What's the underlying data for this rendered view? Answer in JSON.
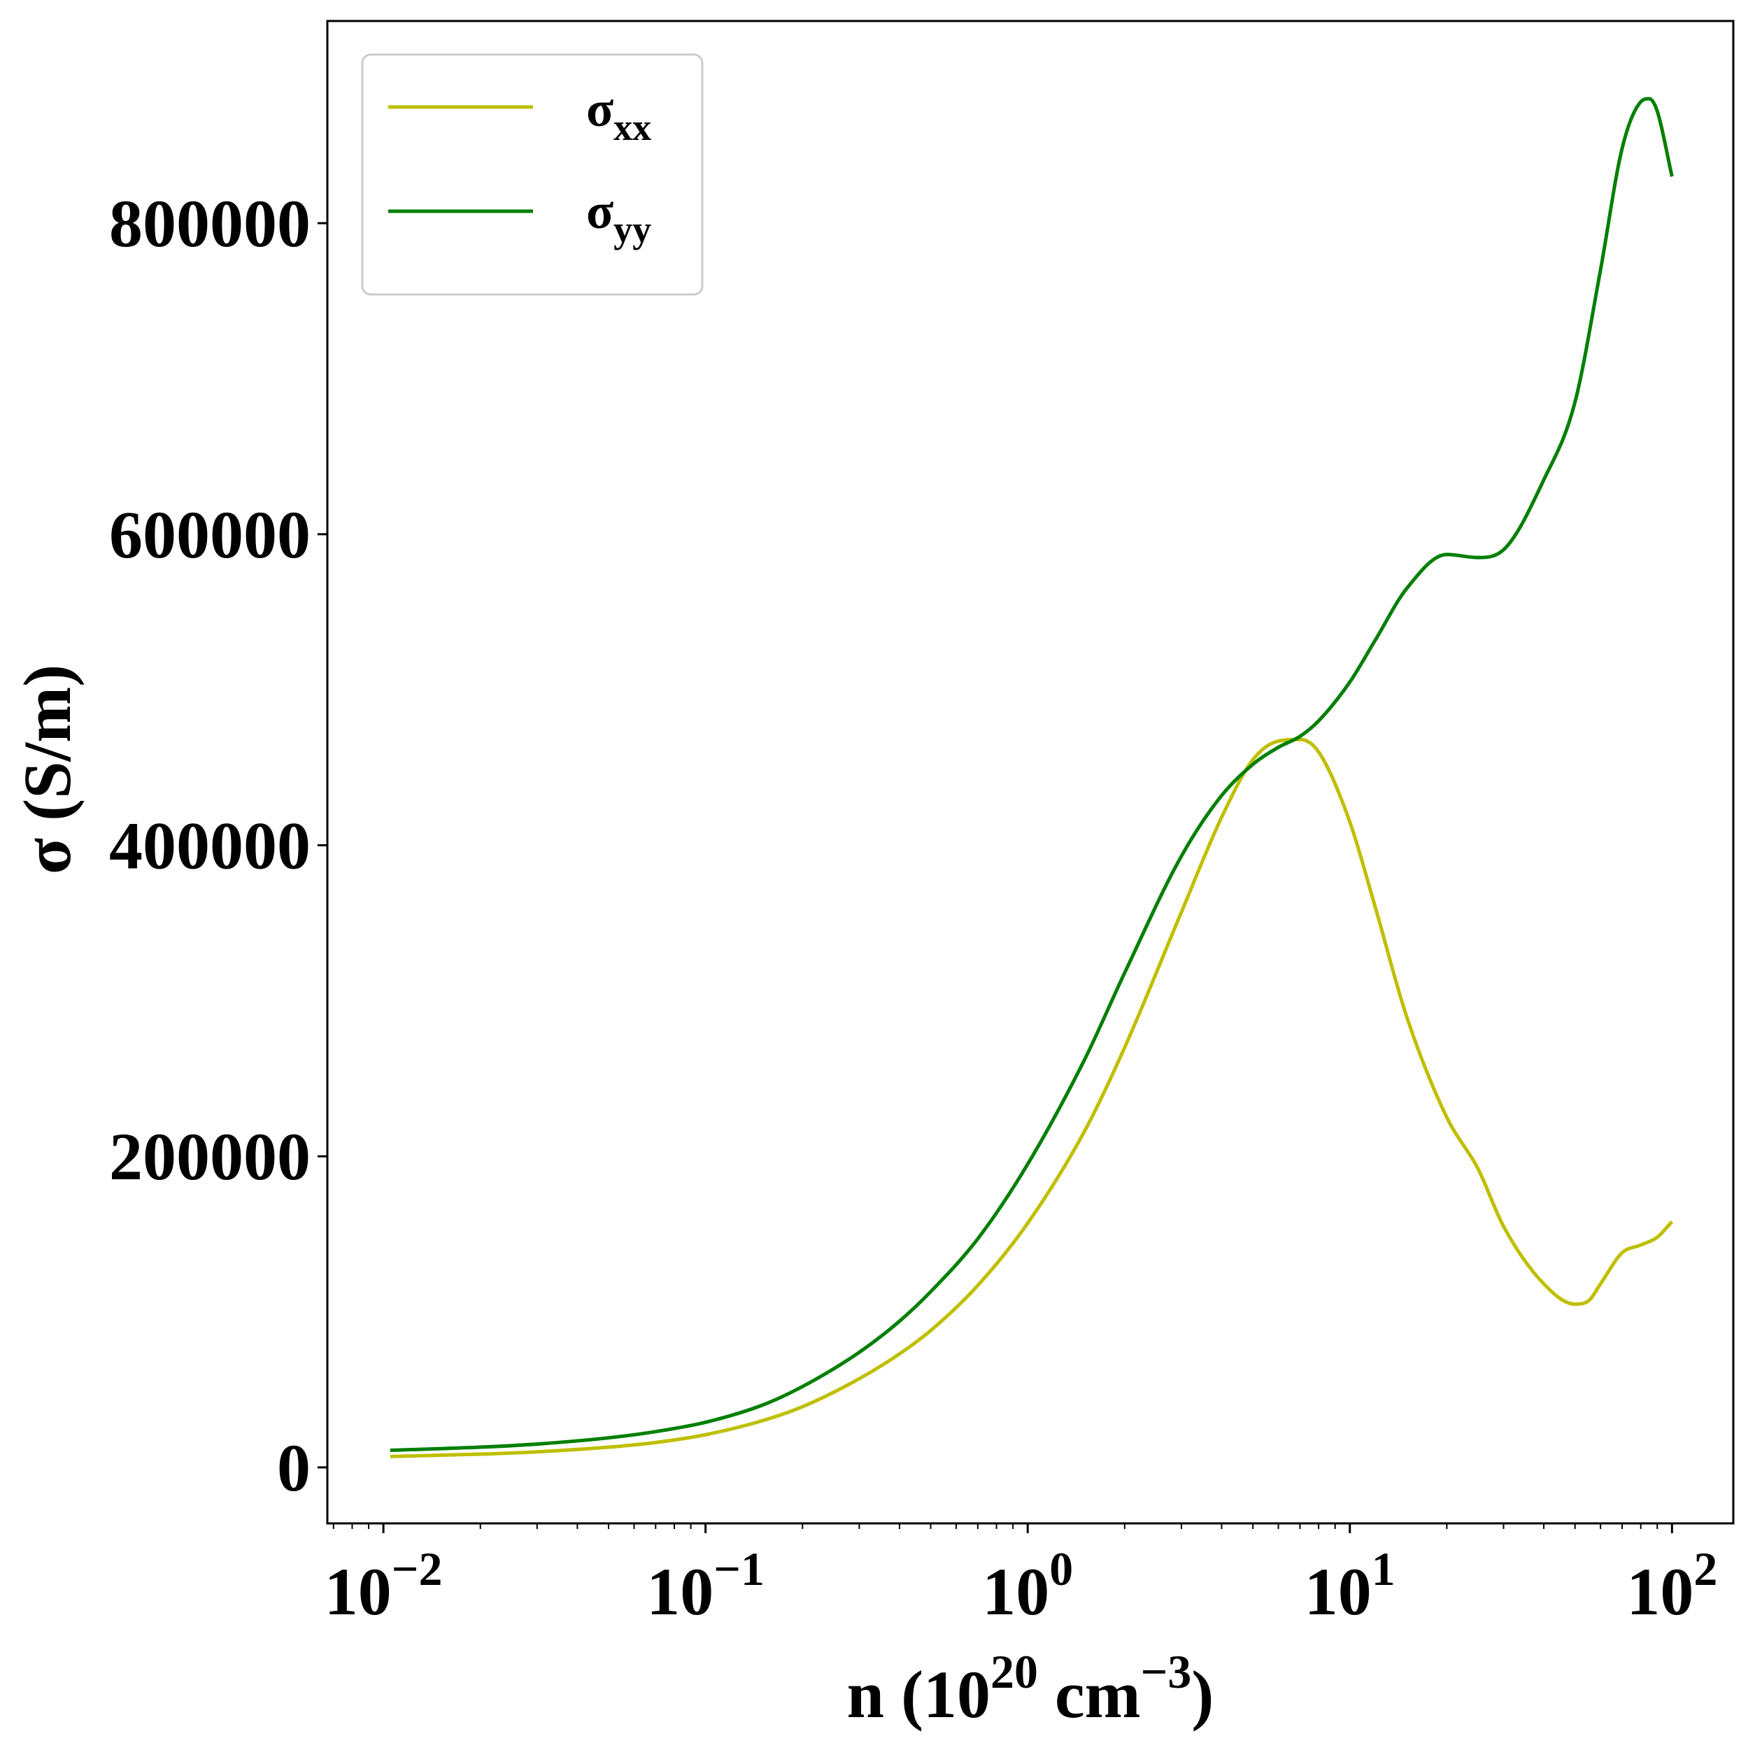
{
  "chart_data": {
    "type": "line",
    "xlabel": {
      "prefix": "n (10",
      "sup1": "20",
      "middle": " cm",
      "sup2": "−3",
      "suffix": ")"
    },
    "ylabel": "σ (S/m)",
    "xscale": "log",
    "xlim": [
      0.0067,
      155
    ],
    "ylim": [
      -36000,
      930000
    ],
    "x_ticks": [
      {
        "value": 0.01,
        "base": "10",
        "exp": "−2"
      },
      {
        "value": 0.1,
        "base": "10",
        "exp": "−1"
      },
      {
        "value": 1,
        "base": "10",
        "exp": "0"
      },
      {
        "value": 10,
        "base": "10",
        "exp": "1"
      },
      {
        "value": 100,
        "base": "10",
        "exp": "2"
      }
    ],
    "y_ticks": [
      {
        "value": 0,
        "label": "0"
      },
      {
        "value": 200000,
        "label": "200000"
      },
      {
        "value": 400000,
        "label": "400000"
      },
      {
        "value": 600000,
        "label": "600000"
      },
      {
        "value": 800000,
        "label": "800000"
      }
    ],
    "grid": false,
    "legend_position": "top-left",
    "series": [
      {
        "name": "σxx",
        "name_main": "σ",
        "name_sub": "xx",
        "color": "#bfbf00",
        "x": [
          0.0105,
          0.02,
          0.03,
          0.05,
          0.07,
          0.1,
          0.15,
          0.2,
          0.3,
          0.4,
          0.5,
          0.7,
          1.0,
          1.5,
          2.0,
          3.0,
          4.0,
          5.0,
          6.0,
          7.0,
          8.0,
          10.0,
          12.0,
          15.0,
          20.0,
          25.0,
          30.0,
          40.0,
          50.0,
          55.0,
          60.0,
          70.0,
          80.0,
          90.0,
          100.0
        ],
        "y": [
          7000,
          8500,
          10000,
          13000,
          16000,
          21000,
          30000,
          39000,
          57000,
          73000,
          88000,
          117000,
          157000,
          216000,
          270000,
          357000,
          418000,
          455000,
          467000,
          468000,
          460000,
          415000,
          360000,
          290000,
          225000,
          192000,
          155000,
          118000,
          105000,
          107000,
          118000,
          138000,
          143000,
          148000,
          158000
        ]
      },
      {
        "name": "σyy",
        "name_main": "σ",
        "name_sub": "yy",
        "color": "#007f00",
        "x": [
          0.0105,
          0.02,
          0.03,
          0.05,
          0.07,
          0.1,
          0.15,
          0.2,
          0.3,
          0.4,
          0.5,
          0.7,
          1.0,
          1.5,
          2.0,
          3.0,
          4.0,
          5.0,
          6.0,
          7.0,
          8.0,
          10.0,
          12.0,
          15.0,
          20.0,
          25.0,
          30.0,
          40.0,
          50.0,
          60.0,
          70.0,
          80.0,
          85.0,
          90.0,
          100.0
        ],
        "y": [
          11000,
          13000,
          15000,
          19000,
          23000,
          29000,
          40000,
          52000,
          74000,
          94000,
          113000,
          147000,
          195000,
          262000,
          318000,
          393000,
          432000,
          452000,
          463000,
          470000,
          480000,
          505000,
          532000,
          565000,
          587000,
          585000,
          590000,
          635000,
          685000,
          770000,
          848000,
          878000,
          880000,
          872000,
          830000
        ]
      }
    ]
  }
}
